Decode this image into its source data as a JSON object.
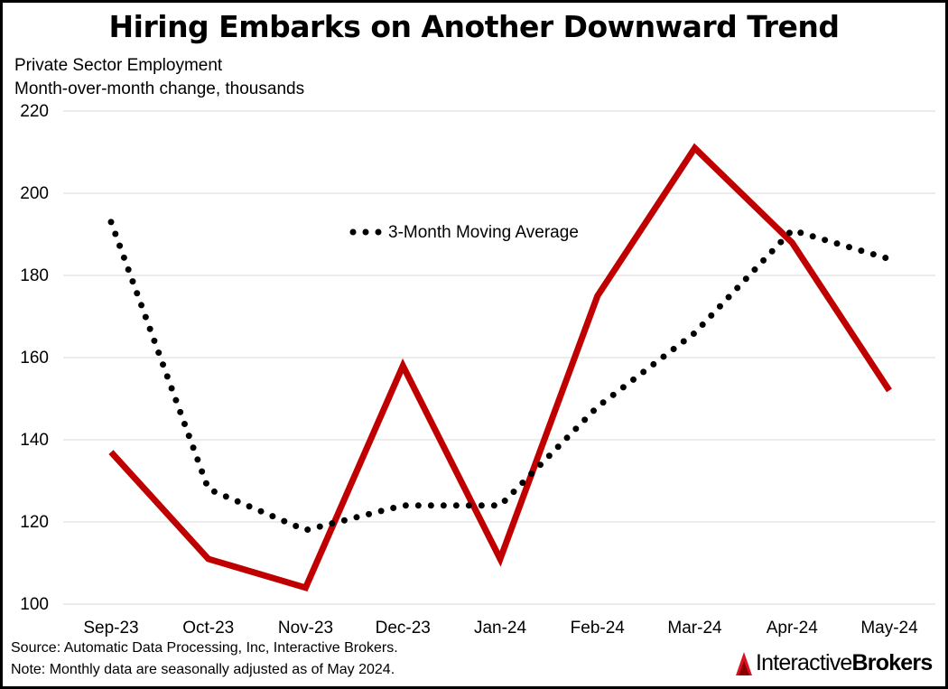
{
  "title": "Hiring Embarks on Another Downward Trend",
  "subtitle_line1": "Private Sector Employment",
  "subtitle_line2": "Month-over-month change, thousands",
  "footnote_source": "Source: Automatic Data Processing, Inc, Interactive Brokers.",
  "footnote_note": "Note: Monthly data are seasonally adjusted as of May 2024.",
  "brand": {
    "part1": "Interactive",
    "part2": "Brokers",
    "icon": "interactive-brokers-logo-icon"
  },
  "colors": {
    "series": "#c00000",
    "moving_average": "#000000",
    "grid": "#d9d9d9"
  },
  "chart_data": {
    "type": "line",
    "title": "Hiring Embarks on Another Downward Trend",
    "ylabel": "Month-over-month change, thousands",
    "categories": [
      "Sep-23",
      "Oct-23",
      "Nov-23",
      "Dec-23",
      "Jan-24",
      "Feb-24",
      "Mar-24",
      "Apr-24",
      "May-24"
    ],
    "ylim": [
      100,
      220
    ],
    "yticks": [
      100,
      120,
      140,
      160,
      180,
      200,
      220
    ],
    "grid": true,
    "legend": "inline label, upper center",
    "series": [
      {
        "name": "",
        "style": "solid",
        "values": [
          137,
          111,
          104,
          158,
          111,
          175,
          211,
          188,
          152
        ]
      },
      {
        "name": "3-Month Moving Average",
        "style": "dotted",
        "values": [
          193,
          128,
          118,
          124,
          124,
          148,
          166,
          191,
          184
        ]
      }
    ]
  }
}
